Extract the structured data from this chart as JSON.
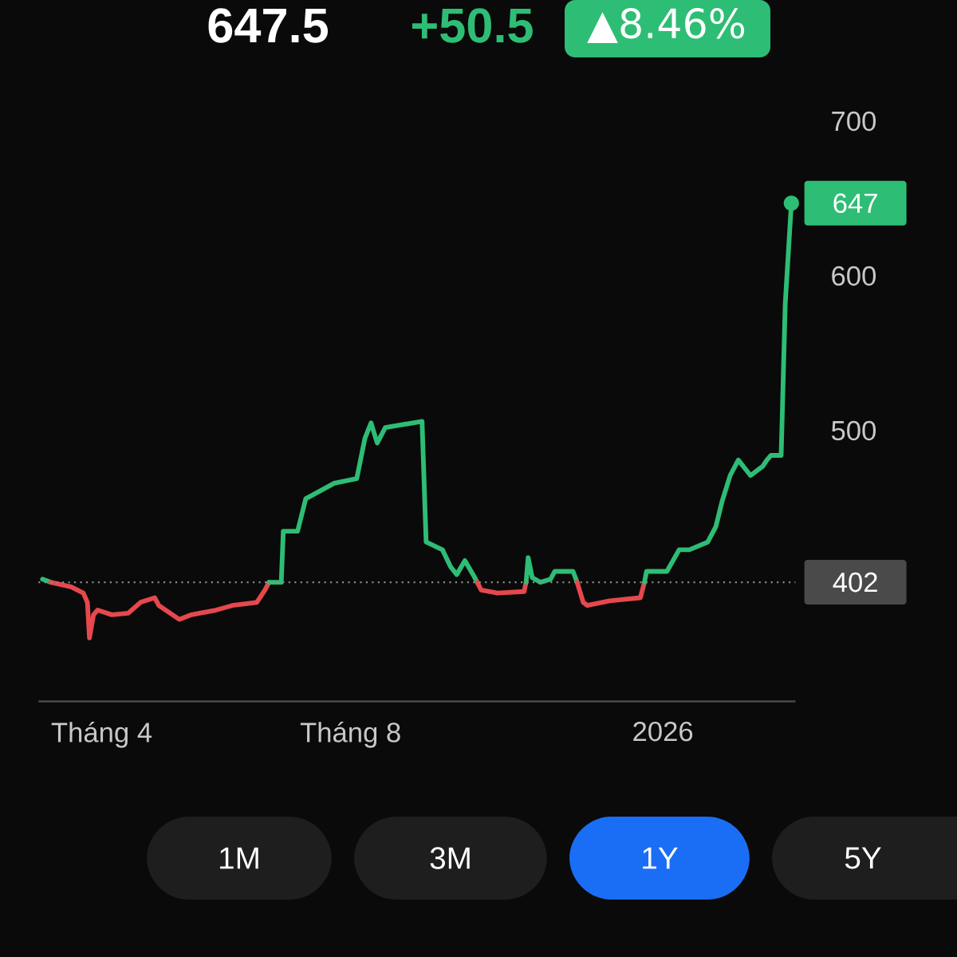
{
  "chart_data": {
    "type": "line",
    "xlim": [
      "2025-03-01",
      "2026-03-07"
    ],
    "ylim": [
      325,
      700
    ],
    "xticks": [
      {
        "value": "2025-04-01",
        "label": "Tháng 4"
      },
      {
        "value": "2025-08-01",
        "label": "Tháng 8"
      },
      {
        "value": "2026-01-01",
        "label": "2026"
      }
    ],
    "yticks": [
      500,
      600,
      700
    ],
    "series": [
      {
        "color": "#2ebd75",
        "x": [
          "2025-03-03",
          "2025-03-07"
        ],
        "values": [
          404,
          402
        ]
      },
      {
        "color": "#e5484d",
        "x": [
          "2025-03-07",
          "2025-03-17",
          "2025-03-23",
          "2025-03-25",
          "2025-03-26",
          "2025-03-28",
          "2025-03-30",
          "2025-04-06",
          "2025-04-14",
          "2025-04-20",
          "2025-04-27",
          "2025-04-29",
          "2025-05-09",
          "2025-05-15",
          "2025-05-27",
          "2025-06-04",
          "2025-06-16",
          "2025-06-20",
          "2025-06-22"
        ],
        "values": [
          402,
          399,
          395,
          389,
          366,
          381,
          384,
          381,
          382,
          389,
          392,
          387,
          378,
          381,
          384,
          387,
          389,
          397,
          402
        ]
      },
      {
        "color": "#2ebd75",
        "x": [
          "2025-06-22",
          "2025-06-28",
          "2025-06-29",
          "2025-07-06",
          "2025-07-10",
          "2025-07-17",
          "2025-07-24",
          "2025-08-04",
          "2025-08-08",
          "2025-08-11",
          "2025-08-14",
          "2025-08-18",
          "2025-09-05",
          "2025-09-07",
          "2025-09-15",
          "2025-09-19",
          "2025-09-22",
          "2025-09-26",
          "2025-09-30",
          "2025-10-02"
        ],
        "values": [
          402,
          402,
          435,
          435,
          456,
          461,
          466,
          469,
          495,
          505,
          492,
          502,
          506,
          428,
          423,
          412,
          407,
          416,
          407,
          402
        ]
      },
      {
        "color": "#e5484d",
        "x": [
          "2025-10-02",
          "2025-10-04",
          "2025-10-12",
          "2025-10-25",
          "2025-10-26"
        ],
        "values": [
          402,
          397,
          395,
          396,
          402
        ]
      },
      {
        "color": "#2ebd75",
        "x": [
          "2025-10-26",
          "2025-10-27",
          "2025-10-29",
          "2025-11-02",
          "2025-11-07",
          "2025-11-09",
          "2025-11-18",
          "2025-11-20"
        ],
        "values": [
          402,
          418,
          405,
          402,
          404,
          409,
          409,
          402
        ]
      },
      {
        "color": "#e5484d",
        "x": [
          "2025-11-20",
          "2025-11-23",
          "2025-11-25",
          "2025-12-06",
          "2025-12-21",
          "2025-12-23"
        ],
        "values": [
          402,
          389,
          387,
          390,
          392,
          402
        ]
      },
      {
        "color": "#2ebd75",
        "x": [
          "2025-12-23",
          "2025-12-24",
          "2026-01-03",
          "2026-01-09",
          "2026-01-14",
          "2026-01-23",
          "2026-01-27",
          "2026-01-30",
          "2026-02-03",
          "2026-02-07",
          "2026-02-13",
          "2026-02-16",
          "2026-02-19",
          "2026-02-21",
          "2026-02-23",
          "2026-02-28",
          "2026-03-02",
          "2026-03-05"
        ],
        "values": [
          402,
          409,
          409,
          423,
          423,
          428,
          438,
          454,
          471,
          481,
          471,
          474,
          477,
          481,
          484,
          484,
          582,
          647
        ]
      }
    ],
    "ref_lines": [
      {
        "axis": "y",
        "value": 402,
        "label": "402",
        "color": "#8a8a8a",
        "line_style": "dotted"
      }
    ],
    "annotations": [
      "647.5",
      "+50.5",
      "▲8.46%",
      {
        "text": "647",
        "x": "2026-03-05",
        "y": 647
      },
      "1M",
      "3M",
      "1Y",
      "5Y"
    ]
  }
}
